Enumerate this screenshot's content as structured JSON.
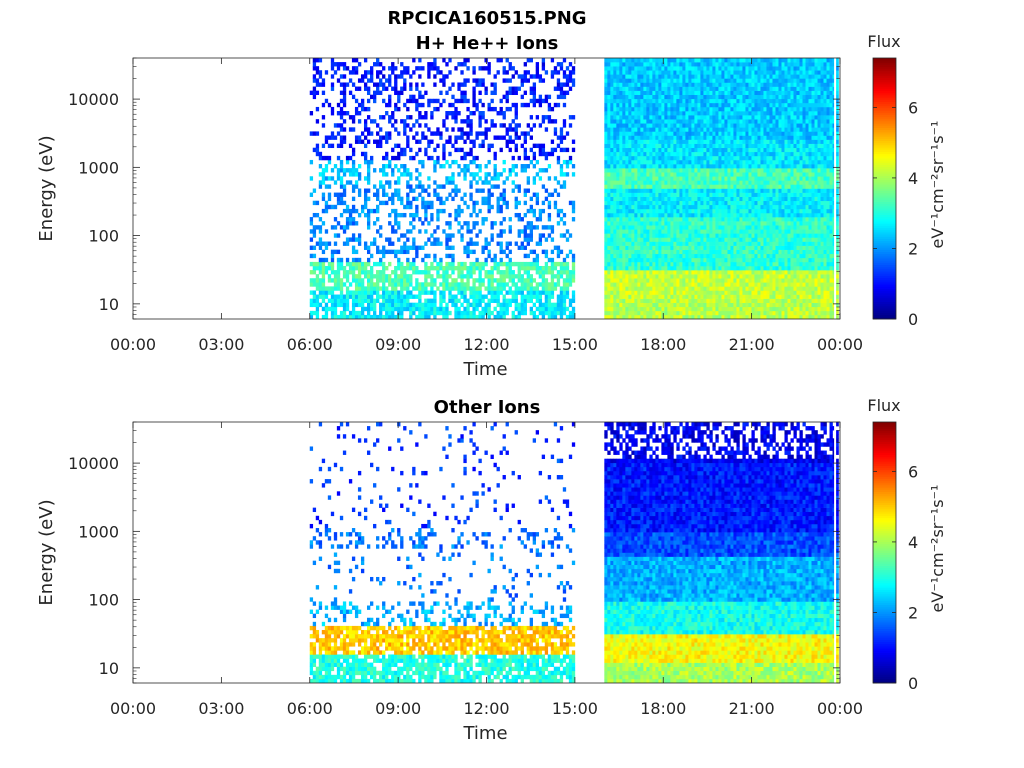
{
  "figure_title": "RPCICA160515.PNG",
  "colors": {
    "axis": "#262626",
    "background": "#ffffff"
  },
  "chart_data": [
    {
      "type": "heatmap",
      "title": "H+ He++ Ions",
      "xlabel": "Time",
      "ylabel": "Energy (eV)",
      "x_ticks": [
        "00:00",
        "03:00",
        "06:00",
        "09:00",
        "12:00",
        "15:00",
        "18:00",
        "21:00",
        "00:00"
      ],
      "x_range_hours": [
        0,
        24
      ],
      "y_scale": "log",
      "y_ticks": [
        "10",
        "100",
        "1000",
        "10000"
      ],
      "y_range": [
        6,
        40000
      ],
      "colorbar": {
        "title": "Flux",
        "label": "eV⁻¹cm⁻²sr⁻¹s⁻¹",
        "ticks": [
          "0",
          "2",
          "4",
          "6"
        ],
        "range": [
          0,
          7.4
        ],
        "colormap": "jet"
      },
      "data_coverage_hours": [
        [
          6.0,
          15.0
        ],
        [
          16.0,
          23.95
        ]
      ],
      "features": [
        {
          "segment": 1,
          "energy_band": [
            15,
            40
          ],
          "level": 3.5
        },
        {
          "segment": 1,
          "energy_band": [
            600,
            1200
          ],
          "level": 2.4
        },
        {
          "segment": 2,
          "energy_band": [
            10,
            30
          ],
          "level": 4.2
        },
        {
          "segment": 2,
          "energy_band": [
            500,
            1000
          ],
          "level": 3.3
        }
      ]
    },
    {
      "type": "heatmap",
      "title": "Other Ions",
      "xlabel": "Time",
      "ylabel": "Energy (eV)",
      "x_ticks": [
        "00:00",
        "03:00",
        "06:00",
        "09:00",
        "12:00",
        "15:00",
        "18:00",
        "21:00",
        "00:00"
      ],
      "x_range_hours": [
        0,
        24
      ],
      "y_scale": "log",
      "y_ticks": [
        "10",
        "100",
        "1000",
        "10000"
      ],
      "y_range": [
        6,
        40000
      ],
      "colorbar": {
        "title": "Flux",
        "label": "eV⁻¹cm⁻²sr⁻¹s⁻¹",
        "ticks": [
          "0",
          "2",
          "4",
          "6"
        ],
        "range": [
          0,
          7.4
        ],
        "colormap": "jet"
      },
      "data_coverage_hours": [
        [
          6.0,
          15.0
        ],
        [
          16.0,
          23.95
        ]
      ],
      "features": [
        {
          "segment": 1,
          "energy_band": [
            15,
            40
          ],
          "level": 5.3
        },
        {
          "segment": 1,
          "energy_band": [
            700,
            1100
          ],
          "level": 1.6
        },
        {
          "segment": 2,
          "energy_band": [
            12,
            30
          ],
          "level": 4.6
        },
        {
          "segment": 2,
          "energy_band": [
            500,
            1000
          ],
          "level": 1.5
        }
      ]
    }
  ]
}
